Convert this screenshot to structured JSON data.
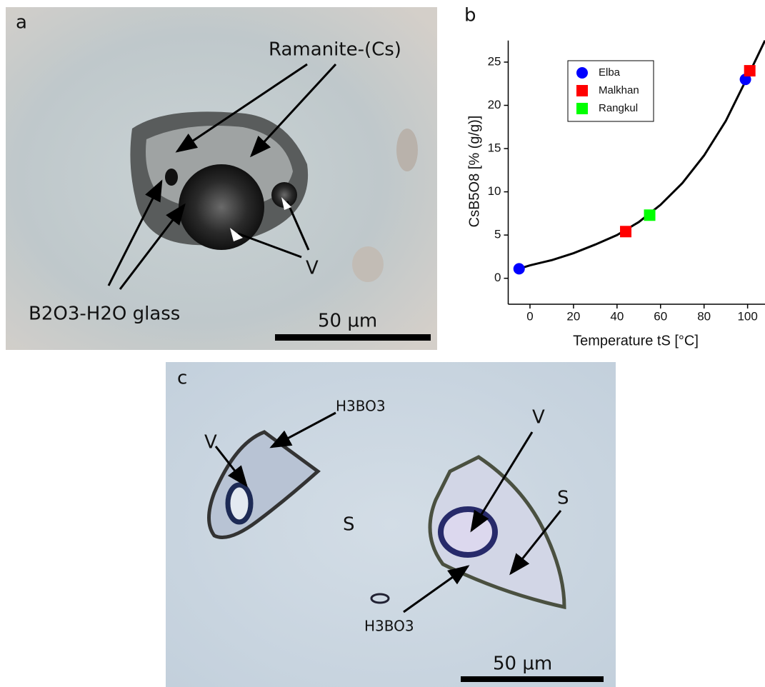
{
  "panel_a": {
    "letter": "a",
    "labels": [
      "Ramanite-(Cs)",
      "V",
      "B2O3-H2O glass"
    ],
    "scale": "50 µm"
  },
  "chart_data": {
    "type": "scatter",
    "letter": "b",
    "xlabel": "Temperature tS [°C]",
    "ylabel": "CsB5O8 [% (g/g)]",
    "xlim": [
      -10,
      108
    ],
    "ylim": [
      -3,
      27.5
    ],
    "xticks": [
      0,
      20,
      40,
      60,
      80,
      100
    ],
    "yticks": [
      0,
      5,
      10,
      15,
      20,
      25
    ],
    "series": [
      {
        "name": "Elba",
        "color": "#0000ff",
        "marker": "circle",
        "x": [
          -5,
          99
        ],
        "values": [
          1.1,
          23
        ]
      },
      {
        "name": "Malkhan",
        "color": "#ff0000",
        "marker": "square",
        "x": [
          44,
          101
        ],
        "values": [
          5.4,
          24
        ]
      },
      {
        "name": "Rangkul",
        "color": "#00ff00",
        "marker": "square",
        "x": [
          55
        ],
        "values": [
          7.3
        ]
      }
    ],
    "curve": {
      "color": "#000000",
      "x": [
        -5,
        0,
        10,
        20,
        30,
        40,
        50,
        60,
        70,
        80,
        90,
        100,
        108
      ],
      "y": [
        1.1,
        1.5,
        2.1,
        2.9,
        3.9,
        5.0,
        6.5,
        8.5,
        11.0,
        14.2,
        18.2,
        23.3,
        27.5
      ]
    }
  },
  "panel_c": {
    "letter": "c",
    "labels": [
      "H3BO3",
      "V",
      "V",
      "S",
      "S",
      "H3BO3"
    ],
    "scale": "50 µm"
  }
}
